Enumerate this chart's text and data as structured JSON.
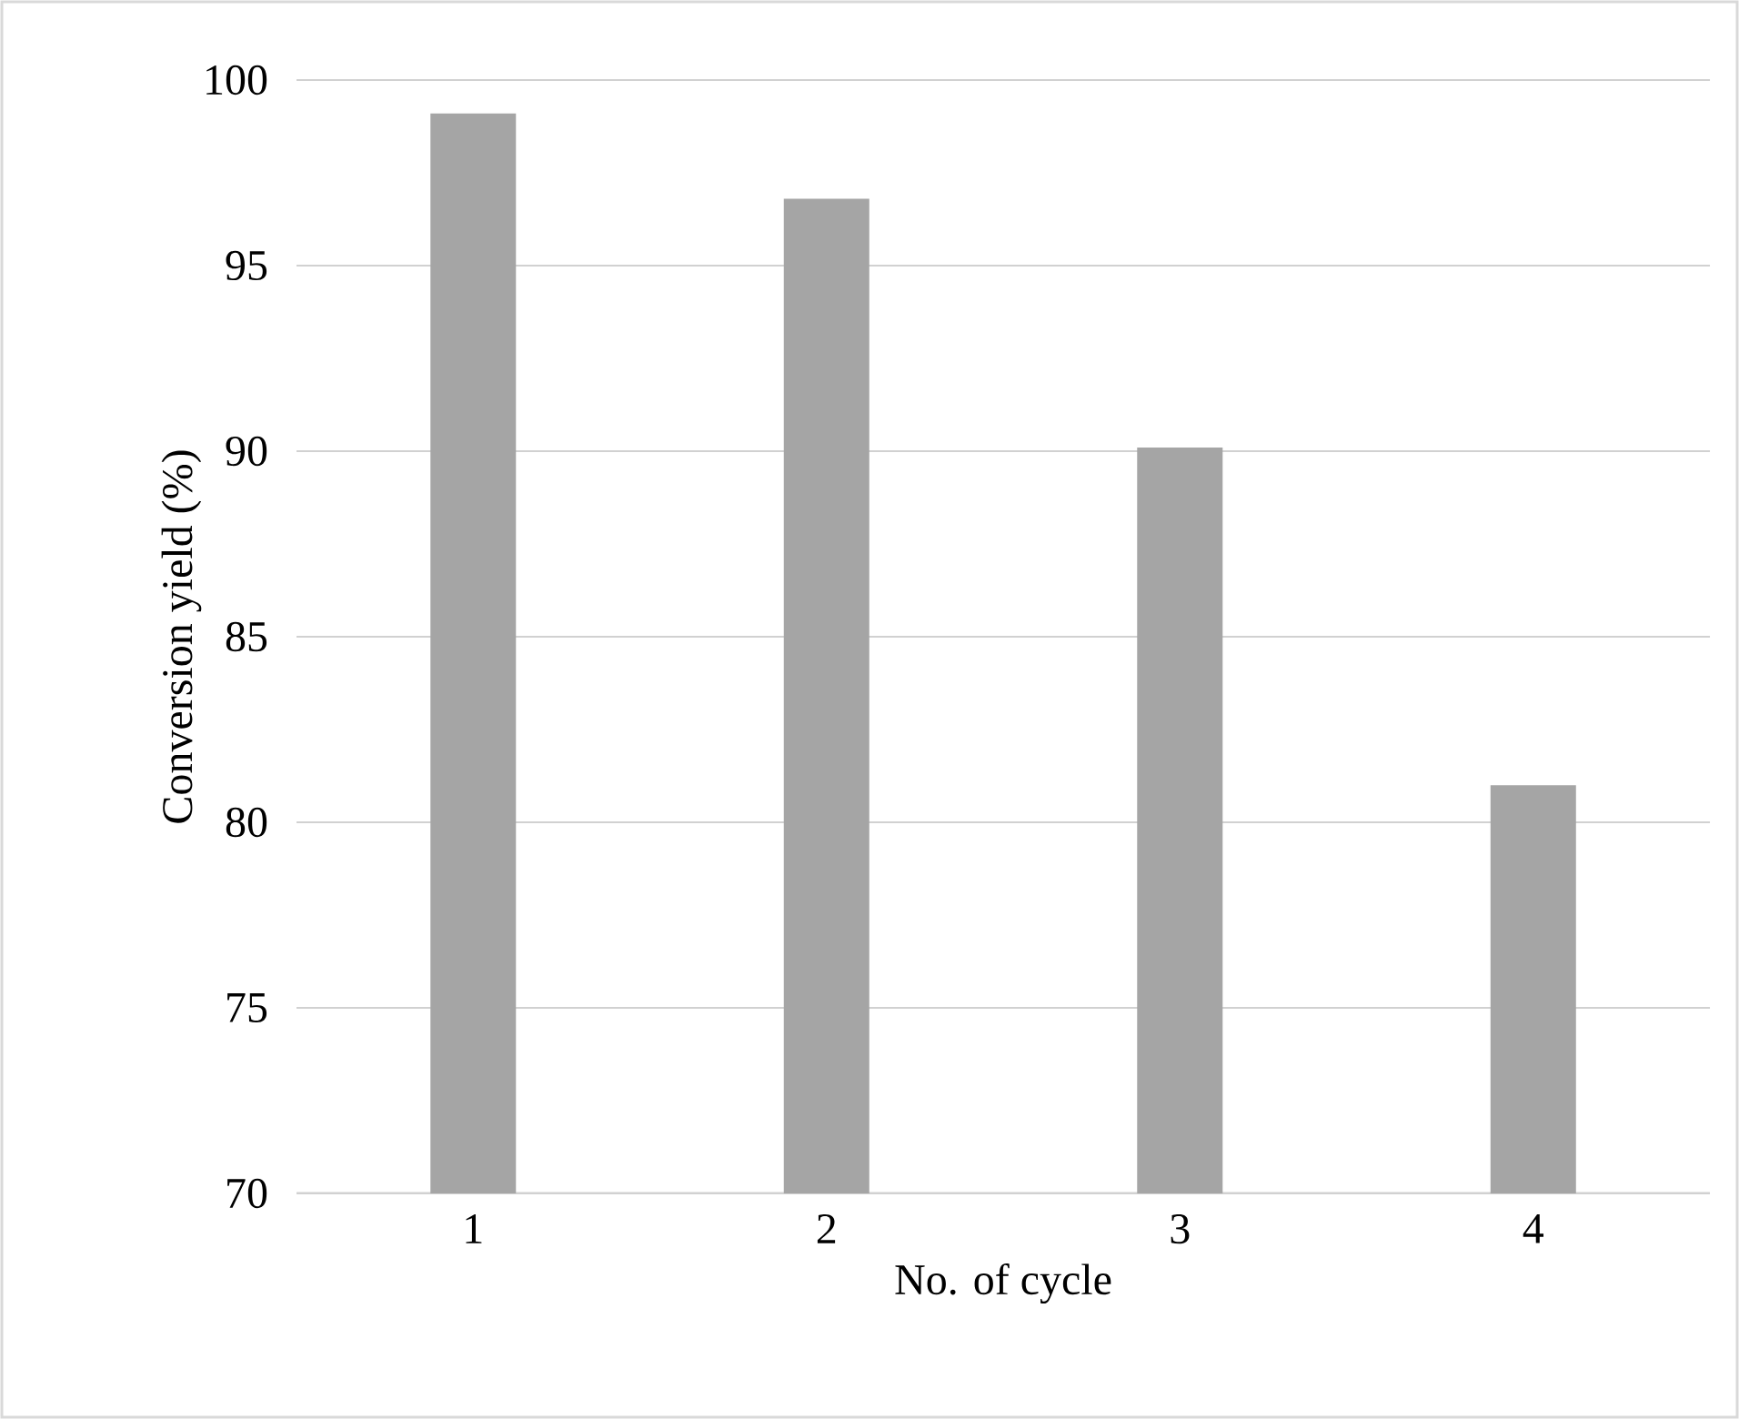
{
  "chart_data": {
    "type": "bar",
    "xlabel": "No. of cycle",
    "ylabel": "Conversion yield (%)",
    "categories": [
      "1",
      "2",
      "3",
      "4"
    ],
    "values": [
      99.1,
      96.8,
      90.1,
      81.0
    ],
    "color": "#a5a5a5",
    "ylim": [
      70,
      100
    ],
    "yticks": [
      70,
      75,
      80,
      85,
      90,
      95,
      100
    ],
    "grid": "y"
  }
}
